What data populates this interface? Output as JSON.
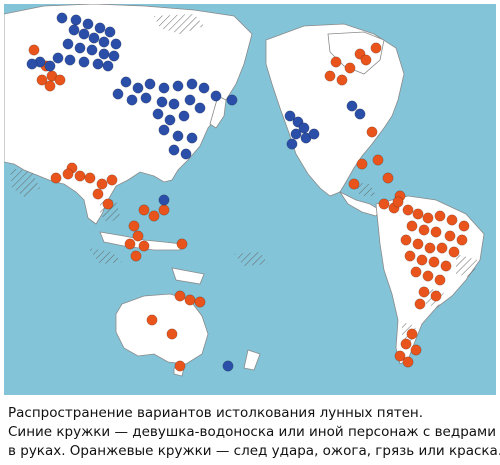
{
  "caption": {
    "line1": "Распространение вариантов истолкования лунных пятен.",
    "line2": "Синие кружки — девушка-водоноска или иной персонаж с ведрами",
    "line3": "в руках. Оранжевые кружки — след удара, ожога, грязь или краска."
  },
  "colors": {
    "ocean": "#83c4d8",
    "land": "#ffffff",
    "blue_marker": "#2b4fa8",
    "orange_marker": "#e8541c"
  },
  "legend": {
    "blue": "girl water-carrier or other character with buckets",
    "orange": "trace of a blow, burn, dirt or paint"
  }
}
